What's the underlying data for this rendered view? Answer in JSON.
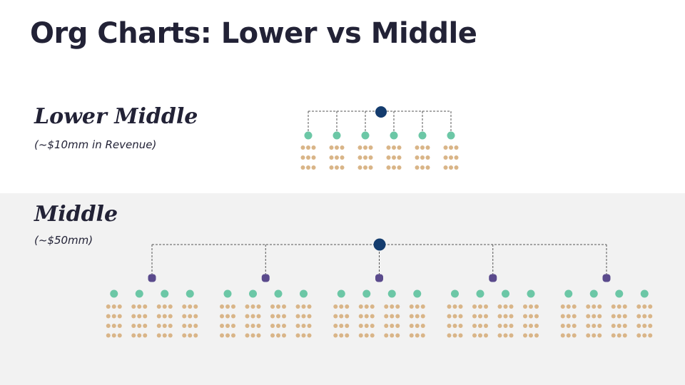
{
  "slide": {
    "title": "Org Charts: Lower vs Middle",
    "colors": {
      "text": "#222236",
      "band": "#f2f2f2",
      "ceo": "#143c6e",
      "vp": "#5a4a8c",
      "manager": "#6cc7a6",
      "staff": "#d9b588",
      "connector": "#555555"
    }
  },
  "lower_middle": {
    "label": "Lower Middle",
    "subtitle": "(~$10mm in Revenue)",
    "structure": {
      "ceo": 1,
      "managers": 6,
      "staff_per_manager": 9
    }
  },
  "middle": {
    "label": "Middle",
    "subtitle": "(~$50mm)",
    "structure": {
      "ceo": 1,
      "vps": 5,
      "managers_per_vp": 4,
      "staff_per_manager": 12
    }
  }
}
